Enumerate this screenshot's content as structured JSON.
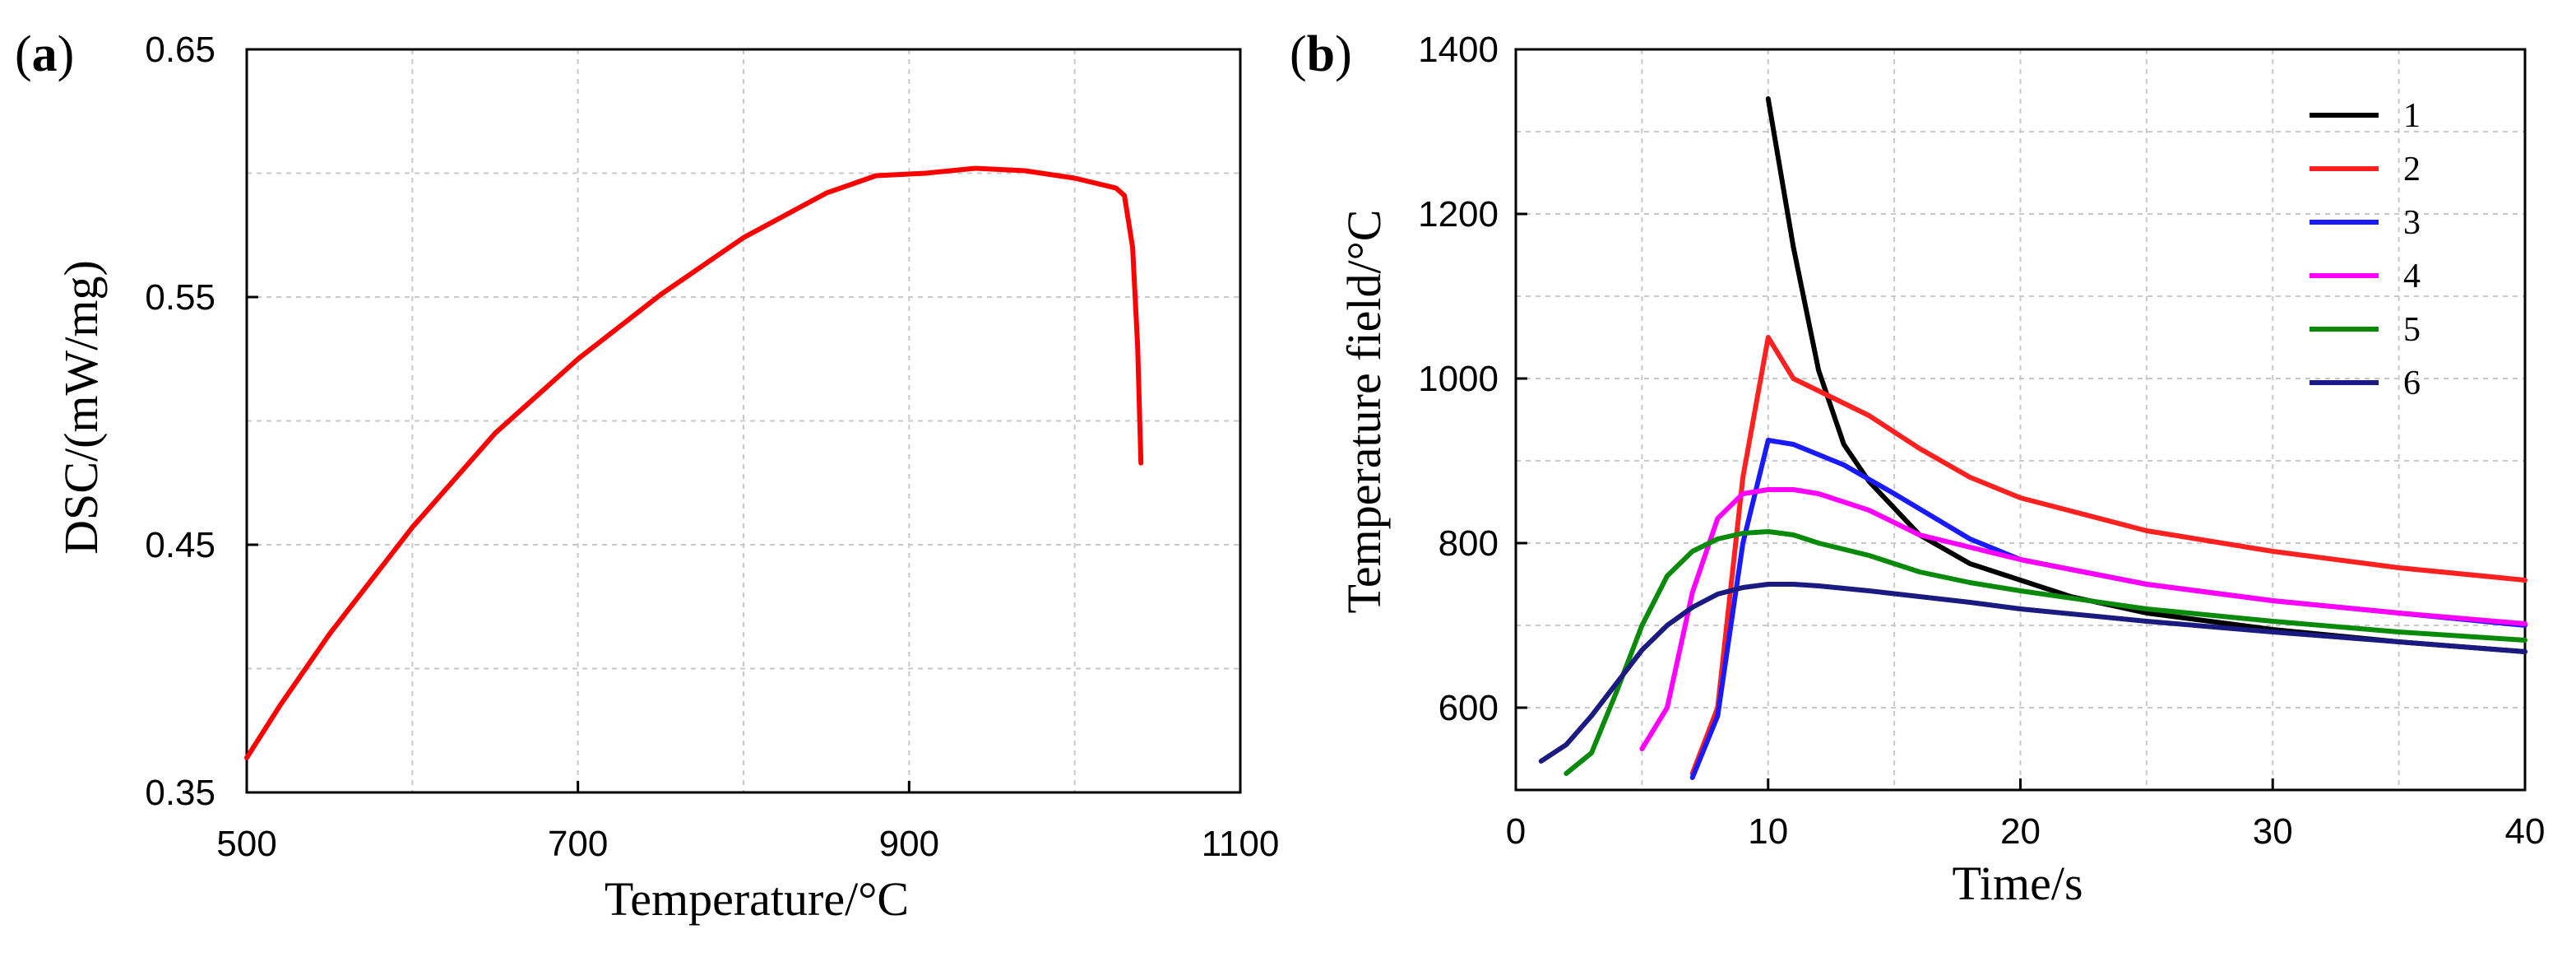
{
  "chart_data": [
    {
      "panel_label": "(a)",
      "type": "line",
      "title": "",
      "xlabel": "Temperature/°C",
      "ylabel": "DSC/(mW/mg)",
      "xlim": [
        500,
        1100
      ],
      "ylim": [
        0.35,
        0.65
      ],
      "xticks": [
        500,
        700,
        900,
        1100
      ],
      "yticks": [
        0.35,
        0.45,
        0.55,
        0.65
      ],
      "xtick_labels": [
        "500",
        "700",
        "900",
        "1100"
      ],
      "ytick_labels": [
        "0.35",
        "0.45",
        "0.55",
        "0.65"
      ],
      "grid": true,
      "series": [
        {
          "name": "DSC",
          "color": "#ff0000",
          "x": [
            500,
            520,
            550,
            600,
            650,
            700,
            750,
            800,
            850,
            880,
            910,
            940,
            970,
            1000,
            1025,
            1030,
            1035,
            1038,
            1040
          ],
          "y": [
            0.364,
            0.385,
            0.414,
            0.457,
            0.495,
            0.525,
            0.551,
            0.574,
            0.592,
            0.599,
            0.6,
            0.602,
            0.601,
            0.598,
            0.594,
            0.591,
            0.57,
            0.53,
            0.483
          ]
        }
      ]
    },
    {
      "panel_label": "(b)",
      "type": "line",
      "title": "",
      "xlabel": "Time/s",
      "ylabel": "Temperature field/°C",
      "xlim": [
        0,
        40
      ],
      "ylim": [
        500,
        1400
      ],
      "xticks": [
        0,
        10,
        20,
        30,
        40
      ],
      "yticks": [
        600,
        800,
        1000,
        1200,
        1400
      ],
      "xtick_labels": [
        "0",
        "10",
        "20",
        "30",
        "40"
      ],
      "ytick_labels": [
        "600",
        "800",
        "1000",
        "1200",
        "1400"
      ],
      "grid": true,
      "legend_position": "top-right",
      "series": [
        {
          "name": "1",
          "color": "#000000",
          "x": [
            10,
            11,
            12,
            13,
            14,
            16,
            18,
            20,
            22,
            25,
            30,
            35,
            40
          ],
          "y": [
            1340,
            1160,
            1010,
            920,
            875,
            810,
            775,
            755,
            735,
            715,
            695,
            680,
            668
          ]
        },
        {
          "name": "2",
          "color": "#ff2020",
          "x": [
            7,
            8,
            9,
            10,
            11,
            12,
            14,
            16,
            18,
            20,
            25,
            30,
            35,
            40
          ],
          "y": [
            520,
            600,
            880,
            1050,
            1000,
            985,
            955,
            915,
            880,
            855,
            815,
            790,
            770,
            755
          ]
        },
        {
          "name": "3",
          "color": "#1a1aff",
          "x": [
            7,
            8,
            9,
            10,
            11,
            13,
            15,
            18,
            20,
            25,
            30,
            35,
            40
          ],
          "y": [
            515,
            590,
            800,
            925,
            920,
            895,
            860,
            805,
            780,
            750,
            730,
            715,
            700
          ]
        },
        {
          "name": "4",
          "color": "#ff00ff",
          "x": [
            5,
            6,
            7,
            8,
            9,
            10,
            11,
            12,
            14,
            16,
            18,
            20,
            25,
            30,
            35,
            40
          ],
          "y": [
            550,
            600,
            740,
            830,
            860,
            865,
            865,
            860,
            840,
            810,
            795,
            780,
            750,
            730,
            715,
            702
          ]
        },
        {
          "name": "5",
          "color": "#0a8a0a",
          "x": [
            2,
            3,
            4,
            5,
            6,
            7,
            8,
            9,
            10,
            11,
            12,
            14,
            16,
            18,
            20,
            25,
            30,
            35,
            40
          ],
          "y": [
            520,
            545,
            620,
            700,
            760,
            790,
            805,
            812,
            814,
            810,
            800,
            785,
            765,
            752,
            742,
            720,
            705,
            692,
            682
          ]
        },
        {
          "name": "6",
          "color": "#1a1a80",
          "x": [
            1,
            2,
            3,
            4,
            5,
            6,
            7,
            8,
            9,
            10,
            11,
            12,
            14,
            16,
            18,
            20,
            25,
            30,
            35,
            40
          ],
          "y": [
            535,
            555,
            590,
            630,
            670,
            700,
            722,
            738,
            746,
            750,
            750,
            748,
            742,
            735,
            728,
            720,
            705,
            692,
            680,
            668
          ]
        }
      ]
    }
  ]
}
